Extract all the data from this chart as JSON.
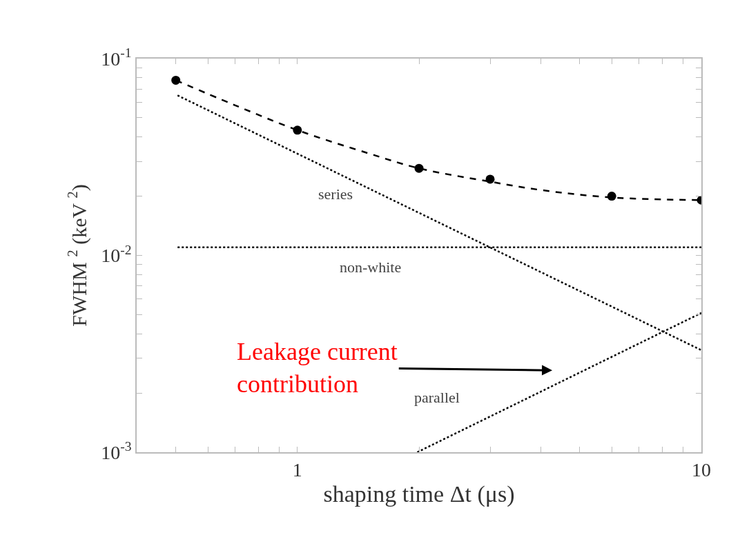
{
  "chart_data": {
    "type": "line",
    "xlabel": "shaping time Δt (μs)",
    "ylabel": "FWHM $^{2}$ (keV $^{2}$)",
    "log": "xy",
    "legend": false,
    "xlim": [
      0.4,
      10
    ],
    "ylim": [
      0.001,
      0.1
    ],
    "xticks": [
      {
        "value": 0.4,
        "label": null
      },
      {
        "value": 0.5,
        "label": null
      },
      {
        "value": 0.6,
        "label": null
      },
      {
        "value": 0.7,
        "label": null
      },
      {
        "value": 0.8,
        "label": null
      },
      {
        "value": 0.9,
        "label": null
      },
      1,
      {
        "value": 2,
        "label": null
      },
      {
        "value": 3,
        "label": null
      },
      {
        "value": 4,
        "label": null
      },
      {
        "value": 5,
        "label": null
      },
      {
        "value": 6,
        "label": null
      },
      {
        "value": 7,
        "label": null
      },
      {
        "value": 8,
        "label": null
      },
      {
        "value": 9,
        "label": null
      },
      10
    ],
    "yticks": [
      {
        "value": 0.001,
        "label": "10$^{-3}$"
      },
      {
        "value": 0.002,
        "label": null
      },
      {
        "value": 0.003,
        "label": null
      },
      {
        "value": 0.004,
        "label": null
      },
      {
        "value": 0.005,
        "label": null
      },
      {
        "value": 0.006,
        "label": null
      },
      {
        "value": 0.007,
        "label": null
      },
      {
        "value": 0.008,
        "label": null
      },
      {
        "value": 0.009,
        "label": null
      },
      {
        "value": 0.01,
        "label": "10$^{-2}$"
      },
      {
        "value": 0.02,
        "label": null
      },
      {
        "value": 0.03,
        "label": null
      },
      {
        "value": 0.04,
        "label": null
      },
      {
        "value": 0.05,
        "label": null
      },
      {
        "value": 0.06,
        "label": null
      },
      {
        "value": 0.07,
        "label": null
      },
      {
        "value": 0.08,
        "label": null
      },
      {
        "value": 0.09,
        "label": null
      },
      {
        "value": 0.1,
        "label": "10$^{-1}$"
      }
    ],
    "series": [
      {
        "line_style": "dashed",
        "color": "#000000",
        "x": [
          0.5,
          0.7,
          1,
          1.5,
          2,
          3,
          4,
          6,
          10
        ],
        "values": [
          0.0776,
          0.058,
          0.0433,
          0.033,
          0.0277,
          0.0237,
          0.0215,
          0.0197,
          0.0191
        ]
      },
      {
        "type": "line",
        "name": "series",
        "line_style": "dotted",
        "color": "#000000",
        "x": [
          0.505,
          10
        ],
        "values": [
          0.065,
          0.0033
        ]
      },
      {
        "type": "line",
        "name": "non-white",
        "line_style": "dotted",
        "color": "#000000",
        "x": [
          0.505,
          10
        ],
        "values": [
          0.011,
          0.011
        ]
      },
      {
        "type": "line",
        "name": "parallel",
        "line_style": "dotted",
        "color": "#000000",
        "x": [
          1.98,
          10
        ],
        "values": [
          0.001,
          0.0051
        ]
      },
      {
        "type": "scatter",
        "marker": "circle",
        "color": "#000000",
        "x": [
          0.5,
          1,
          2,
          3,
          6,
          10
        ],
        "values": [
          0.0776,
          0.0433,
          0.0277,
          0.0244,
          0.02,
          0.0191
        ]
      }
    ],
    "annotations": [
      "Leakage current\ncontribution"
    ]
  }
}
